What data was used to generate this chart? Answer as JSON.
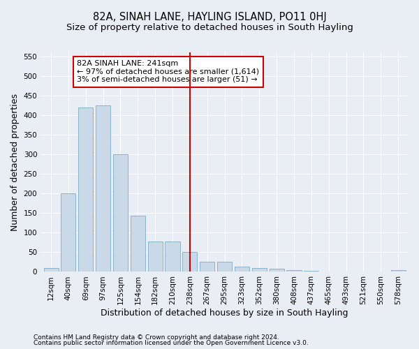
{
  "title": "82A, SINAH LANE, HAYLING ISLAND, PO11 0HJ",
  "subtitle": "Size of property relative to detached houses in South Hayling",
  "xlabel": "Distribution of detached houses by size in South Hayling",
  "ylabel": "Number of detached properties",
  "bar_labels": [
    "12sqm",
    "40sqm",
    "69sqm",
    "97sqm",
    "125sqm",
    "154sqm",
    "182sqm",
    "210sqm",
    "238sqm",
    "267sqm",
    "295sqm",
    "323sqm",
    "352sqm",
    "380sqm",
    "408sqm",
    "437sqm",
    "465sqm",
    "493sqm",
    "521sqm",
    "550sqm",
    "578sqm"
  ],
  "bar_values": [
    10,
    200,
    420,
    425,
    300,
    143,
    78,
    78,
    50,
    25,
    25,
    13,
    10,
    8,
    5,
    3,
    0,
    0,
    0,
    0,
    5
  ],
  "bar_color": "#c9d9e8",
  "bar_edge_color": "#8ab4cc",
  "ylim": [
    0,
    560
  ],
  "yticks": [
    0,
    50,
    100,
    150,
    200,
    250,
    300,
    350,
    400,
    450,
    500,
    550
  ],
  "vline_x": 8,
  "vline_color": "#cc0000",
  "annotation_text": "82A SINAH LANE: 241sqm\n← 97% of detached houses are smaller (1,614)\n3% of semi-detached houses are larger (51) →",
  "annotation_box_color": "#ffffff",
  "annotation_box_edge": "#cc0000",
  "footer_line1": "Contains HM Land Registry data © Crown copyright and database right 2024.",
  "footer_line2": "Contains public sector information licensed under the Open Government Licence v3.0.",
  "bg_color": "#e8eef4",
  "plot_bg_color": "#e8eef4",
  "grid_color": "#ffffff",
  "title_fontsize": 10.5,
  "subtitle_fontsize": 9.5,
  "tick_fontsize": 7.5,
  "label_fontsize": 9,
  "footer_fontsize": 6.5,
  "annotation_fontsize": 8
}
